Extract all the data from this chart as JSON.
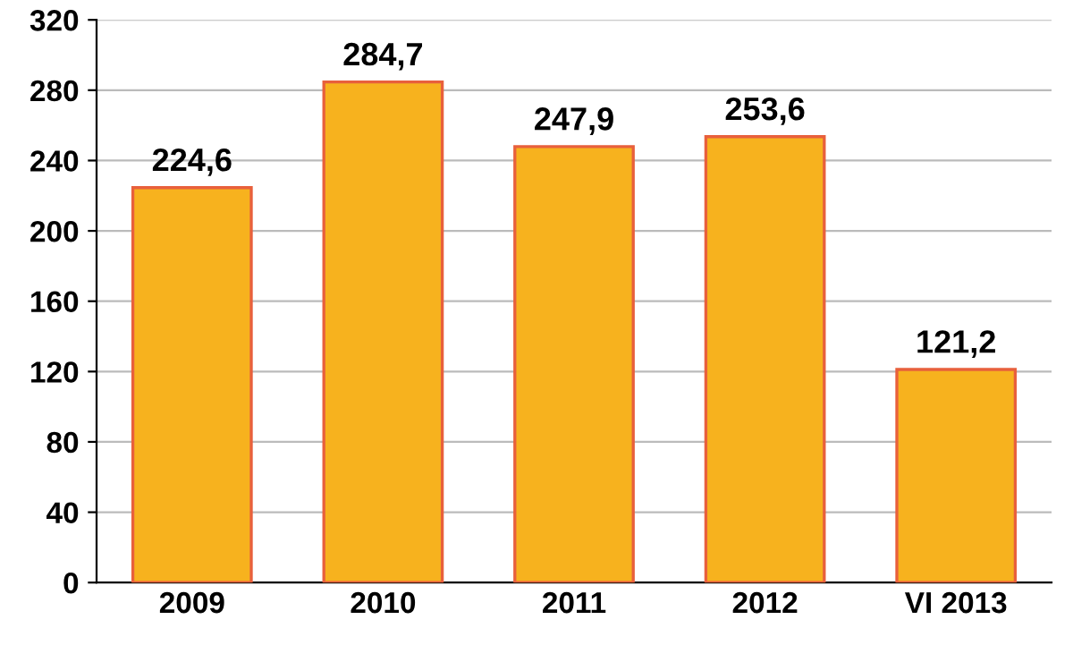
{
  "chart_data": {
    "type": "bar",
    "categories": [
      "2009",
      "2010",
      "2011",
      "2012",
      "VI 2013"
    ],
    "values": [
      224.6,
      284.7,
      247.9,
      253.6,
      121.2
    ],
    "value_labels": [
      "224,6",
      "284,7",
      "247,9",
      "253,6",
      "121,2"
    ],
    "color": "#f7b21e",
    "ylim": [
      0,
      320
    ],
    "yticks": [
      0,
      40,
      80,
      120,
      160,
      200,
      240,
      280,
      320
    ],
    "grid": "y"
  }
}
